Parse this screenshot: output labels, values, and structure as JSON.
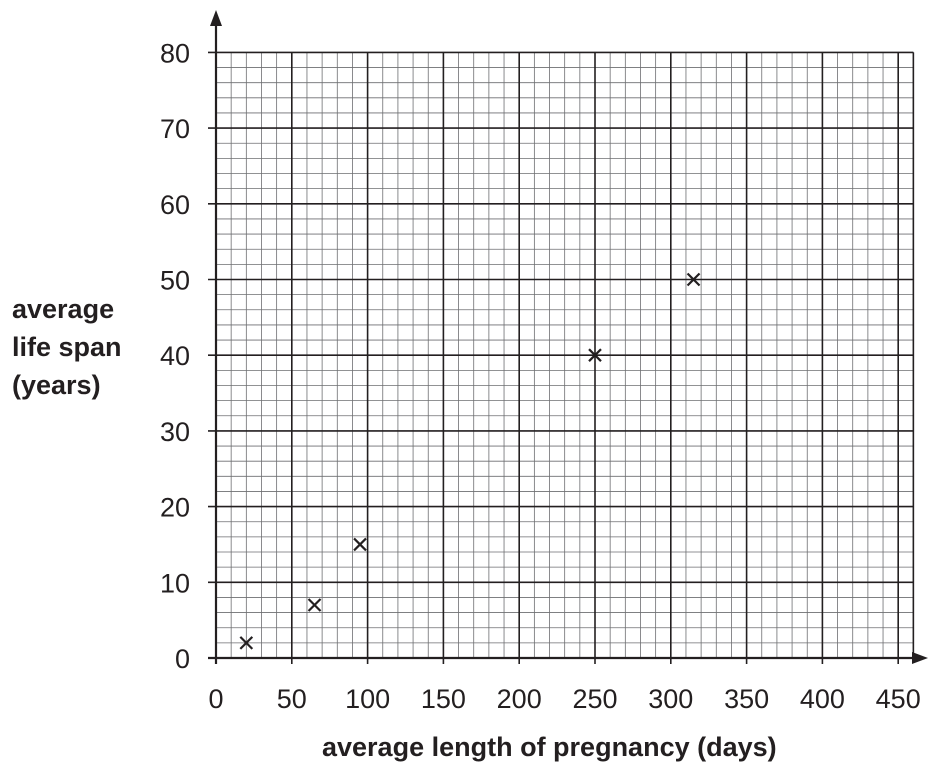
{
  "chart_data": {
    "type": "scatter",
    "title": "",
    "xlabel": "average length of pregnancy (days)",
    "ylabel_lines": [
      "average",
      "life span",
      "(years)"
    ],
    "xlim": [
      0,
      460
    ],
    "ylim": [
      0,
      80
    ],
    "x_ticks": [
      0,
      50,
      100,
      150,
      200,
      250,
      300,
      350,
      400,
      450
    ],
    "y_ticks": [
      0,
      10,
      20,
      30,
      40,
      50,
      60,
      70,
      80
    ],
    "x_minor_step": 10,
    "y_minor_step": 2,
    "grid": true,
    "marker": "x",
    "points": [
      {
        "x": 20,
        "y": 2
      },
      {
        "x": 65,
        "y": 7
      },
      {
        "x": 95,
        "y": 15
      },
      {
        "x": 250,
        "y": 40
      },
      {
        "x": 315,
        "y": 50
      }
    ],
    "colors": {
      "ink": "#231f20",
      "grid": "#6d6e71"
    }
  }
}
